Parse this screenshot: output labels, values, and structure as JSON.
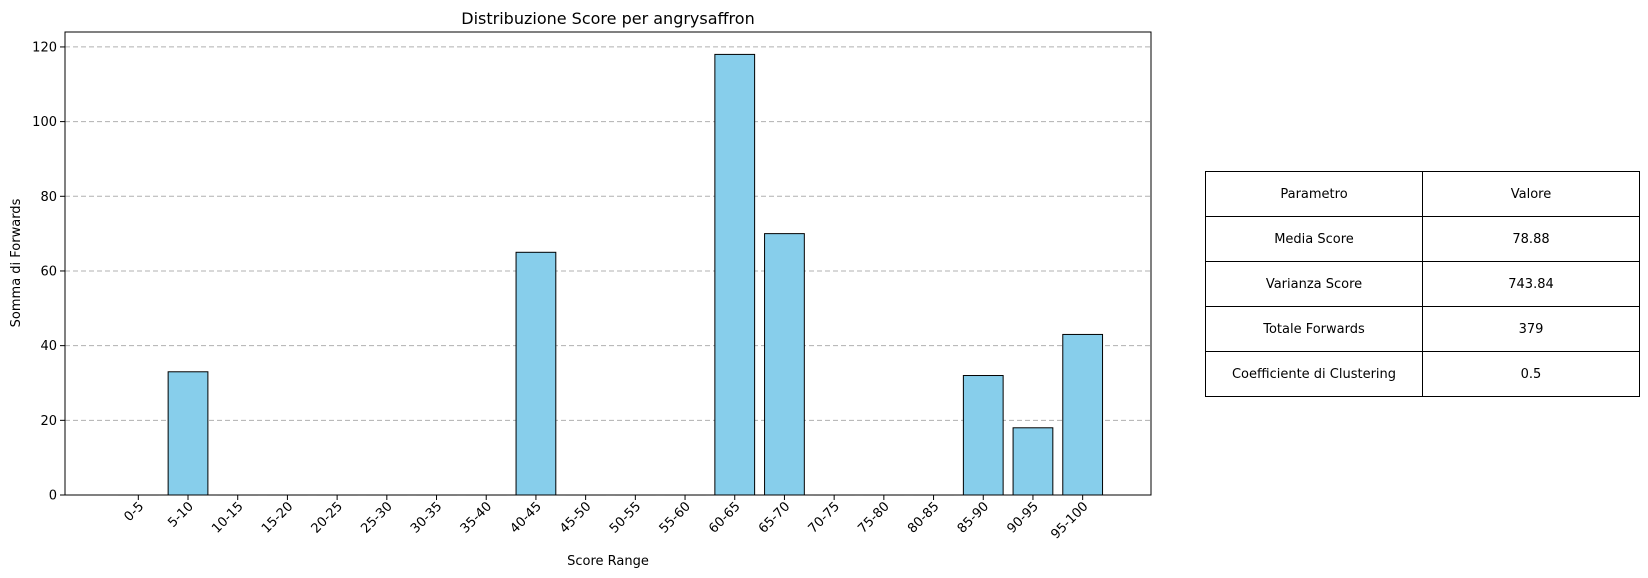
{
  "chart_data": {
    "type": "bar",
    "title": "Distribuzione Score per angrysaffron",
    "xlabel": "Score Range",
    "ylabel": "Somma di Forwards",
    "categories": [
      "0-5",
      "5-10",
      "10-15",
      "15-20",
      "20-25",
      "25-30",
      "30-35",
      "35-40",
      "40-45",
      "45-50",
      "50-55",
      "55-60",
      "60-65",
      "65-70",
      "70-75",
      "75-80",
      "80-85",
      "85-90",
      "90-95",
      "95-100"
    ],
    "values": [
      0,
      33,
      0,
      0,
      0,
      0,
      0,
      0,
      65,
      0,
      0,
      0,
      118,
      70,
      0,
      0,
      0,
      32,
      18,
      43
    ],
    "ylim": [
      0,
      124
    ],
    "yticks": [
      0,
      20,
      40,
      60,
      80,
      100,
      120
    ],
    "grid": "y-dashed",
    "bar_color": "#87CEEB",
    "edge_color": "#000000",
    "tick_rotation": 45
  },
  "table": {
    "header": [
      "Parametro",
      "Valore"
    ],
    "rows": [
      [
        "Media Score",
        "78.88"
      ],
      [
        "Varianza Score",
        "743.84"
      ],
      [
        "Totale Forwards",
        "379"
      ],
      [
        "Coefficiente di Clustering",
        "0.5"
      ]
    ]
  }
}
